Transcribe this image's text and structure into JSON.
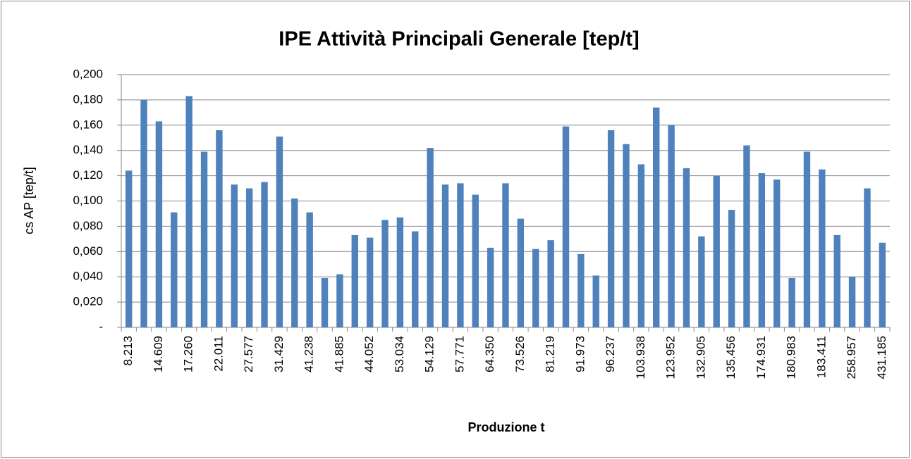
{
  "chart_data": {
    "type": "bar",
    "title": "IPE Attività Principali Generale [tep/t]",
    "x_label": "Produzione t",
    "y_label": "cs AP [tep/t]",
    "categories": [
      "8.213",
      null,
      "14.609",
      null,
      "17.260",
      null,
      "22.011",
      null,
      "27.577",
      null,
      "31.429",
      null,
      "41.238",
      null,
      "41.885",
      null,
      "44.052",
      null,
      "53.034",
      null,
      "54.129",
      null,
      "57.771",
      null,
      "64.350",
      null,
      "73.526",
      null,
      "81.219",
      null,
      "91.973",
      null,
      "96.237",
      null,
      "103.938",
      null,
      "123.952",
      null,
      "132.905",
      null,
      "135.456",
      null,
      "174.931",
      null,
      "180.983",
      null,
      "183.411",
      null,
      "258.957",
      null,
      "431.185"
    ],
    "values": [
      0.124,
      0.18,
      0.163,
      0.091,
      0.183,
      0.139,
      0.156,
      0.113,
      0.11,
      0.115,
      0.151,
      0.102,
      0.091,
      0.039,
      0.042,
      0.073,
      0.071,
      0.085,
      0.087,
      0.076,
      0.142,
      0.113,
      0.114,
      0.105,
      0.063,
      0.114,
      0.086,
      0.062,
      0.069,
      0.159,
      0.058,
      0.041,
      0.156,
      0.145,
      0.129,
      0.174,
      0.16,
      0.126,
      0.072,
      0.12,
      0.093,
      0.144,
      0.122,
      0.117,
      0.039,
      0.139,
      0.125,
      0.073,
      0.04,
      0.11,
      0.067
    ],
    "color": "#4f81bd",
    "ylim": [
      0,
      0.2
    ],
    "yticks": [
      {
        "value": 0,
        "label": "-"
      },
      {
        "value": 0.02,
        "label": "0,020"
      },
      {
        "value": 0.04,
        "label": "0,040"
      },
      {
        "value": 0.06,
        "label": "0,060"
      },
      {
        "value": 0.08,
        "label": "0,080"
      },
      {
        "value": 0.1,
        "label": "0,100"
      },
      {
        "value": 0.12,
        "label": "0,120"
      },
      {
        "value": 0.14,
        "label": "0,140"
      },
      {
        "value": 0.16,
        "label": "0,160"
      },
      {
        "value": 0.18,
        "label": "0,180"
      },
      {
        "value": 0.2,
        "label": "0,200"
      }
    ],
    "grid": true
  }
}
